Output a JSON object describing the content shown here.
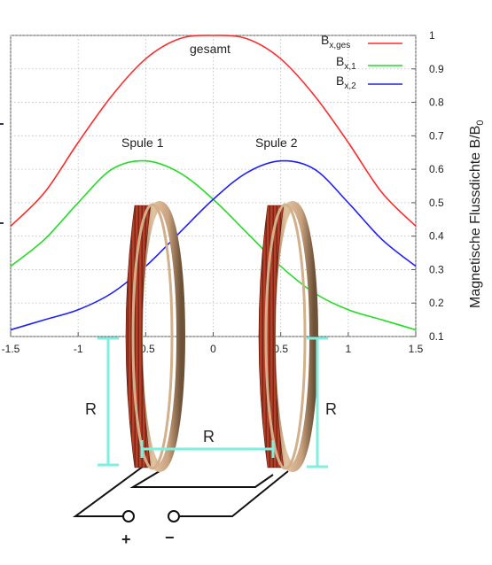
{
  "chart_data": {
    "type": "line",
    "ylabel": "Magnetische Flussdichte B/B",
    "ylabel_sub": "0",
    "xlim": [
      -1.5,
      1.5
    ],
    "ylim": [
      0.1,
      1.0
    ],
    "x_ticks": [
      "-1.5",
      "-1",
      "-0.5",
      "0",
      "0.5",
      "1",
      "1.5"
    ],
    "y_ticks": [
      "0.1",
      "0.2",
      "0.3",
      "0.4",
      "0.5",
      "0.6",
      "0.7",
      "0.8",
      "0.9",
      "1"
    ],
    "grid": true,
    "legend_position": "top-right",
    "series": [
      {
        "key": "ges",
        "name": "B",
        "name_sub": "x,ges",
        "color": "#ff2a2a",
        "x": [
          -1.5,
          -1.25,
          -1.0,
          -0.75,
          -0.5,
          -0.25,
          0.0,
          0.25,
          0.5,
          0.75,
          1.0,
          1.25,
          1.5
        ],
        "y": [
          0.43,
          0.53,
          0.68,
          0.82,
          0.93,
          0.99,
          1.0,
          0.99,
          0.93,
          0.82,
          0.68,
          0.53,
          0.43
        ]
      },
      {
        "key": "x1",
        "name": "B",
        "name_sub": "x,1",
        "color": "#22dd22",
        "x": [
          -1.5,
          -1.25,
          -1.0,
          -0.75,
          -0.5,
          -0.25,
          0.0,
          0.25,
          0.5,
          0.75,
          1.0,
          1.25,
          1.5
        ],
        "y": [
          0.31,
          0.39,
          0.5,
          0.6,
          0.625,
          0.59,
          0.51,
          0.41,
          0.31,
          0.23,
          0.18,
          0.15,
          0.12
        ]
      },
      {
        "key": "x2",
        "name": "B",
        "name_sub": "x,2",
        "color": "#1f1fff",
        "x": [
          -1.5,
          -1.25,
          -1.0,
          -0.75,
          -0.5,
          -0.25,
          0.0,
          0.25,
          0.5,
          0.75,
          1.0,
          1.25,
          1.5
        ],
        "y": [
          0.12,
          0.15,
          0.18,
          0.23,
          0.31,
          0.41,
          0.51,
          0.59,
          0.625,
          0.6,
          0.5,
          0.39,
          0.31
        ]
      }
    ],
    "annotations": {
      "gesamt": "gesamt",
      "spule1": "Spule 1",
      "spule2": "Spule 2"
    }
  },
  "diagram": {
    "radius_label": "R",
    "distance_label": "R",
    "plus": "+",
    "minus": "−",
    "colors": {
      "measure": "#7fefe0",
      "coil": "#b53a24",
      "ring": "#c9a27f",
      "wire": "#111111"
    }
  }
}
